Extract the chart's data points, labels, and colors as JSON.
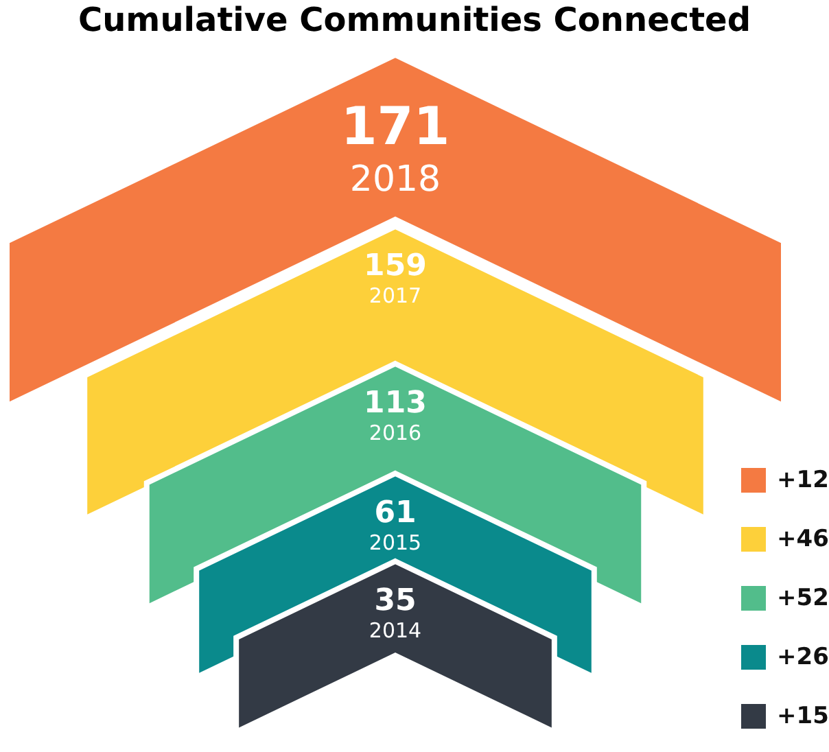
{
  "chart_data": {
    "type": "other",
    "title": "Cumulative Communities Connected",
    "categories": [
      "2018",
      "2017",
      "2016",
      "2015",
      "2014"
    ],
    "values": [
      171,
      159,
      113,
      61,
      35
    ],
    "colors": [
      "#f47a42",
      "#fdd03a",
      "#52bd8b",
      "#0a8a8c",
      "#333a45"
    ],
    "data_labels": true,
    "annotations": [
      "+12",
      "+46",
      "+52",
      "+26",
      "+15"
    ]
  }
}
